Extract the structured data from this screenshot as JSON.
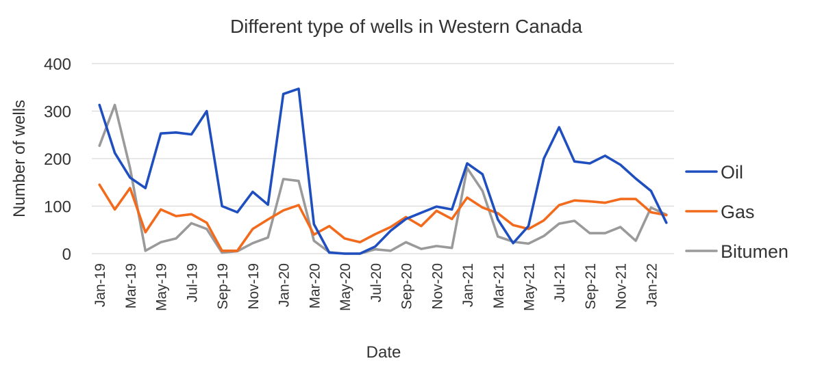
{
  "chart_data": {
    "type": "line",
    "title": "Different type of wells in Western Canada",
    "xlabel": "Date",
    "ylabel": "Number of wells",
    "ylim": [
      0,
      400
    ],
    "yticks": [
      0,
      100,
      200,
      300,
      400
    ],
    "grid": true,
    "legend_position": "right",
    "x": [
      "Jan-19",
      "Feb-19",
      "Mar-19",
      "Apr-19",
      "May-19",
      "Jun-19",
      "Jul-19",
      "Aug-19",
      "Sep-19",
      "Oct-19",
      "Nov-19",
      "Dec-19",
      "Jan-20",
      "Feb-20",
      "Mar-20",
      "Apr-20",
      "May-20",
      "Jun-20",
      "Jul-20",
      "Aug-20",
      "Sep-20",
      "Oct-20",
      "Nov-20",
      "Dec-20",
      "Jan-21",
      "Feb-21",
      "Mar-21",
      "Apr-21",
      "May-21",
      "Jun-21",
      "Jul-21",
      "Aug-21",
      "Sep-21",
      "Oct-21",
      "Nov-21",
      "Dec-21",
      "Jan-22",
      "Feb-22"
    ],
    "x_tick_labels": [
      "Jan-19",
      "Mar-19",
      "May-19",
      "Jul-19",
      "Sep-19",
      "Nov-19",
      "Jan-20",
      "Mar-20",
      "May-20",
      "Jul-20",
      "Sep-20",
      "Nov-20",
      "Jan-21",
      "Mar-21",
      "May-21",
      "Jul-21",
      "Sep-21",
      "Nov-21",
      "Jan-22"
    ],
    "series": [
      {
        "name": "Oil",
        "color": "#1f4fbf",
        "values": [
          313,
          212,
          160,
          138,
          253,
          255,
          251,
          300,
          100,
          87,
          130,
          103,
          336,
          347,
          62,
          2,
          0,
          0,
          15,
          48,
          73,
          86,
          99,
          93,
          190,
          167,
          72,
          22,
          58,
          200,
          266,
          194,
          190,
          206,
          187,
          158,
          132,
          65
        ]
      },
      {
        "name": "Gas",
        "color": "#f26b1d",
        "values": [
          145,
          93,
          138,
          45,
          93,
          79,
          83,
          65,
          6,
          6,
          52,
          72,
          91,
          102,
          40,
          58,
          32,
          24,
          41,
          56,
          77,
          58,
          90,
          73,
          118,
          97,
          85,
          60,
          52,
          70,
          102,
          112,
          110,
          107,
          115,
          115,
          87,
          81
        ]
      },
      {
        "name": "Bitumen",
        "color": "#9a9a9a",
        "values": [
          227,
          313,
          180,
          6,
          24,
          32,
          64,
          52,
          2,
          5,
          22,
          34,
          157,
          153,
          27,
          3,
          0,
          0,
          9,
          6,
          24,
          10,
          16,
          12,
          180,
          132,
          36,
          25,
          21,
          37,
          63,
          69,
          43,
          43,
          56,
          27,
          97,
          82
        ]
      }
    ]
  }
}
